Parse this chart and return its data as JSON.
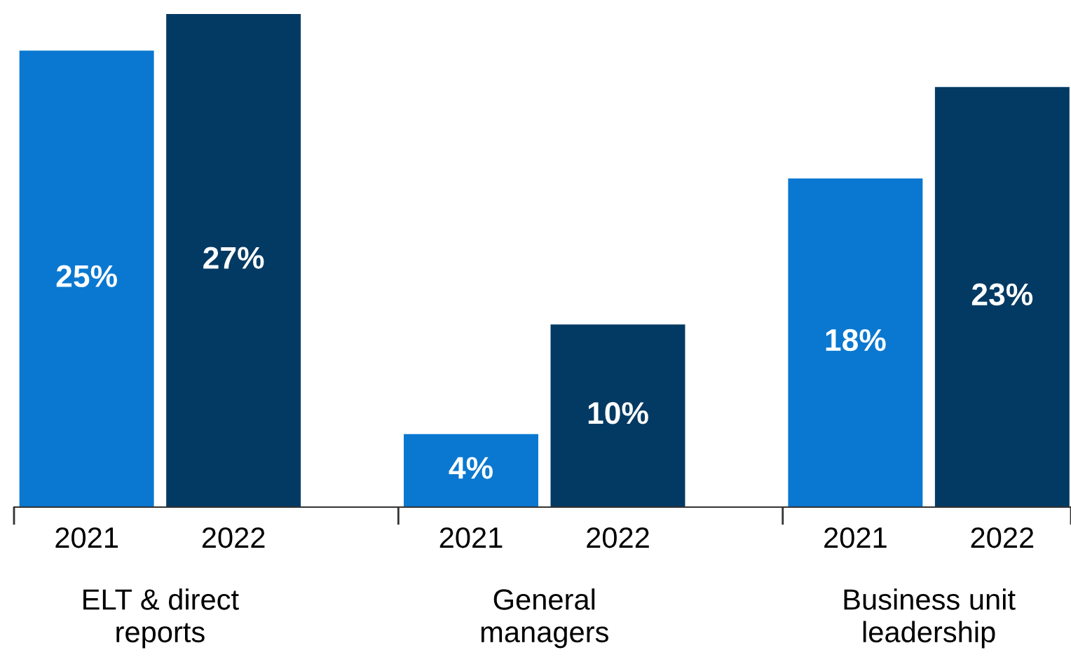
{
  "chart_data": {
    "type": "bar",
    "categories": [
      "ELT & direct\nreports",
      "General\nmanagers",
      "Business unit\nleadership"
    ],
    "series": [
      {
        "name": "2021",
        "color": "#0a78d0",
        "values": [
          25,
          4,
          18
        ],
        "value_labels": [
          "25%",
          "4%",
          "18%"
        ]
      },
      {
        "name": "2022",
        "color": "#033a63",
        "values": [
          27,
          10,
          23
        ],
        "value_labels": [
          "27%",
          "10%",
          "23%"
        ]
      }
    ],
    "grid": false,
    "legend": false
  }
}
